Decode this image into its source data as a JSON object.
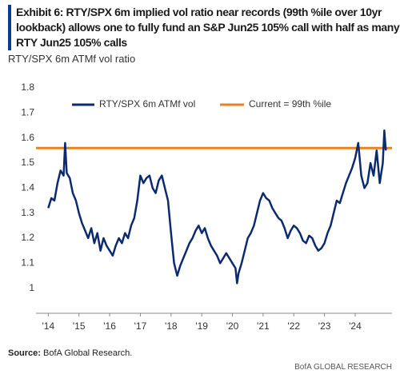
{
  "chart_data": {
    "type": "line",
    "title": "Exhibit 6: RTY/SPX 6m implied vol ratio near records (99th %ile over 10yr lookback) allows one to fully fund an S&P Jun25 105% call with half as many RTY Jun25 105% calls",
    "subtitle": "RTY/SPX 6m ATMf vol ratio",
    "x": [
      2014.0,
      2014.1,
      2014.2,
      2014.3,
      2014.4,
      2014.5,
      2014.55,
      2014.6,
      2014.7,
      2014.8,
      2014.9,
      2015.0,
      2015.1,
      2015.2,
      2015.3,
      2015.4,
      2015.5,
      2015.6,
      2015.7,
      2015.8,
      2015.9,
      2016.0,
      2016.1,
      2016.2,
      2016.3,
      2016.4,
      2016.5,
      2016.6,
      2016.7,
      2016.8,
      2016.9,
      2017.0,
      2017.1,
      2017.2,
      2017.3,
      2017.4,
      2017.5,
      2017.6,
      2017.7,
      2017.8,
      2017.9,
      2018.0,
      2018.1,
      2018.2,
      2018.3,
      2018.4,
      2018.5,
      2018.6,
      2018.7,
      2018.8,
      2018.9,
      2019.0,
      2019.1,
      2019.2,
      2019.3,
      2019.4,
      2019.5,
      2019.6,
      2019.7,
      2019.8,
      2019.9,
      2020.0,
      2020.1,
      2020.15,
      2020.2,
      2020.3,
      2020.4,
      2020.5,
      2020.6,
      2020.7,
      2020.8,
      2020.9,
      2021.0,
      2021.1,
      2021.2,
      2021.3,
      2021.4,
      2021.5,
      2021.6,
      2021.7,
      2021.8,
      2021.9,
      2022.0,
      2022.1,
      2022.2,
      2022.3,
      2022.4,
      2022.5,
      2022.6,
      2022.7,
      2022.8,
      2022.9,
      2023.0,
      2023.1,
      2023.2,
      2023.3,
      2023.4,
      2023.5,
      2023.6,
      2023.7,
      2023.8,
      2023.9,
      2024.0,
      2024.1,
      2024.2,
      2024.3,
      2024.4,
      2024.5,
      2024.6,
      2024.7,
      2024.8,
      2024.9,
      2024.95,
      2025.0
    ],
    "series": [
      {
        "name": "RTY/SPX 6m ATMf vol",
        "color": "#0c2b6e",
        "values": [
          1.32,
          1.36,
          1.35,
          1.42,
          1.47,
          1.45,
          1.58,
          1.46,
          1.44,
          1.38,
          1.35,
          1.3,
          1.26,
          1.23,
          1.2,
          1.24,
          1.18,
          1.22,
          1.15,
          1.2,
          1.17,
          1.15,
          1.13,
          1.17,
          1.2,
          1.18,
          1.22,
          1.2,
          1.25,
          1.28,
          1.35,
          1.45,
          1.42,
          1.44,
          1.45,
          1.4,
          1.38,
          1.43,
          1.45,
          1.4,
          1.35,
          1.22,
          1.1,
          1.05,
          1.09,
          1.12,
          1.15,
          1.18,
          1.2,
          1.23,
          1.25,
          1.22,
          1.24,
          1.2,
          1.17,
          1.15,
          1.13,
          1.1,
          1.12,
          1.14,
          1.12,
          1.1,
          1.08,
          1.02,
          1.06,
          1.1,
          1.15,
          1.2,
          1.22,
          1.25,
          1.3,
          1.35,
          1.38,
          1.36,
          1.35,
          1.32,
          1.3,
          1.28,
          1.27,
          1.24,
          1.2,
          1.23,
          1.25,
          1.24,
          1.22,
          1.19,
          1.18,
          1.21,
          1.2,
          1.17,
          1.15,
          1.16,
          1.18,
          1.22,
          1.25,
          1.3,
          1.35,
          1.34,
          1.38,
          1.42,
          1.45,
          1.48,
          1.52,
          1.58,
          1.45,
          1.4,
          1.42,
          1.5,
          1.45,
          1.55,
          1.42,
          1.5,
          1.63,
          1.55
        ]
      }
    ],
    "reference_line": {
      "name": "Current = 99th %ile",
      "value": 1.56,
      "color": "#e8821e"
    },
    "xlim": [
      2013.6,
      2025.2
    ],
    "xticks": [
      {
        "value": 2014,
        "label": "'14"
      },
      {
        "value": 2015,
        "label": "'15"
      },
      {
        "value": 2016,
        "label": "'16"
      },
      {
        "value": 2017,
        "label": "'17"
      },
      {
        "value": 2018,
        "label": "'18"
      },
      {
        "value": 2019,
        "label": "'19"
      },
      {
        "value": 2020,
        "label": "'20"
      },
      {
        "value": 2021,
        "label": "'21"
      },
      {
        "value": 2022,
        "label": "'22"
      },
      {
        "value": 2023,
        "label": "'23"
      },
      {
        "value": 2024,
        "label": "'24"
      }
    ],
    "ylim": [
      0.9,
      1.8
    ],
    "yticks": [
      1,
      1.1,
      1.2,
      1.3,
      1.4,
      1.5,
      1.6,
      1.7,
      1.8
    ],
    "grid": false,
    "source_label": "Source:",
    "source": "BofA Global Research.",
    "footer": "BofA GLOBAL RESEARCH"
  }
}
